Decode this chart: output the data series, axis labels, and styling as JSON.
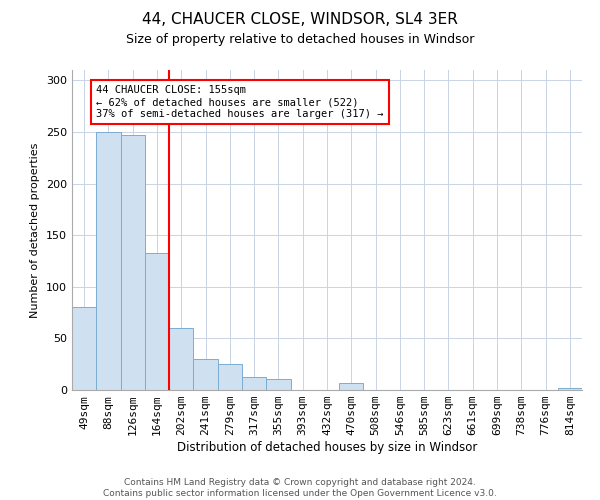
{
  "title": "44, CHAUCER CLOSE, WINDSOR, SL4 3ER",
  "subtitle": "Size of property relative to detached houses in Windsor",
  "xlabel": "Distribution of detached houses by size in Windsor",
  "ylabel": "Number of detached properties",
  "bar_labels": [
    "49sqm",
    "88sqm",
    "126sqm",
    "164sqm",
    "202sqm",
    "241sqm",
    "279sqm",
    "317sqm",
    "355sqm",
    "393sqm",
    "432sqm",
    "470sqm",
    "508sqm",
    "546sqm",
    "585sqm",
    "623sqm",
    "661sqm",
    "699sqm",
    "738sqm",
    "776sqm",
    "814sqm"
  ],
  "bar_values": [
    80,
    250,
    247,
    133,
    60,
    30,
    25,
    13,
    11,
    0,
    0,
    7,
    0,
    0,
    0,
    0,
    0,
    0,
    0,
    0,
    2
  ],
  "bar_color": "#cfe0f0",
  "bar_edge_color": "#7aadd4",
  "vline_color": "red",
  "ylim": [
    0,
    310
  ],
  "yticks": [
    0,
    50,
    100,
    150,
    200,
    250,
    300
  ],
  "annotation_title": "44 CHAUCER CLOSE: 155sqm",
  "annotation_line1": "← 62% of detached houses are smaller (522)",
  "annotation_line2": "37% of semi-detached houses are larger (317) →",
  "annotation_box_color": "#ffffff",
  "annotation_box_edge": "red",
  "footer_line1": "Contains HM Land Registry data © Crown copyright and database right 2024.",
  "footer_line2": "Contains public sector information licensed under the Open Government Licence v3.0.",
  "background_color": "#ffffff",
  "grid_color": "#c8d4e4"
}
